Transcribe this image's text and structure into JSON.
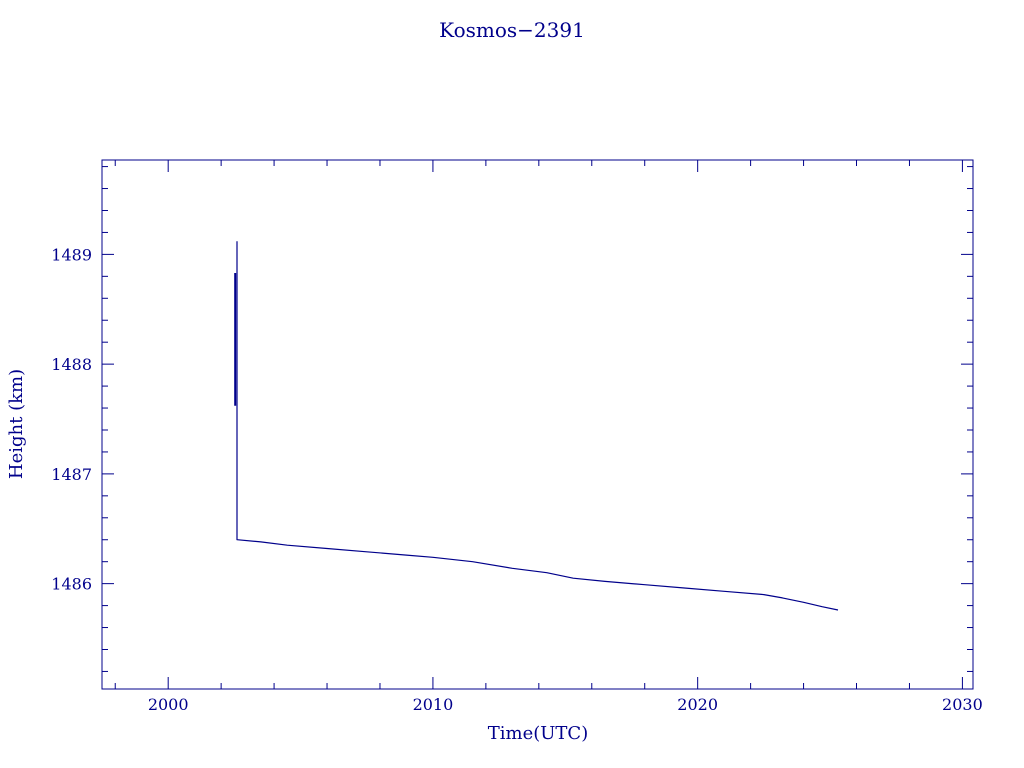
{
  "chart_data": {
    "type": "line",
    "title": "Kosmos−2391",
    "xlabel": "Time(UTC)",
    "ylabel": "Height (km)",
    "xlim": [
      1997.5,
      2030.4
    ],
    "ylim": [
      1485.04,
      1489.86
    ],
    "x_ticks": [
      2000,
      2010,
      2020,
      2030
    ],
    "x_minor_step": 2,
    "y_ticks": [
      1486,
      1487,
      1488,
      1489
    ],
    "y_minor_step": 0.2,
    "grid": false,
    "color": "#00008b",
    "series": [
      {
        "values": [
          [
            2002.6,
            1489.12
          ],
          [
            2002.6,
            1486.4
          ],
          [
            2003.5,
            1486.38
          ],
          [
            2004.5,
            1486.35
          ],
          [
            2006.0,
            1486.32
          ],
          [
            2007.5,
            1486.29
          ],
          [
            2009.0,
            1486.26
          ],
          [
            2010.0,
            1486.24
          ],
          [
            2011.5,
            1486.2
          ],
          [
            2013.0,
            1486.14
          ],
          [
            2014.3,
            1486.1
          ],
          [
            2015.3,
            1486.05
          ],
          [
            2016.5,
            1486.02
          ],
          [
            2018.0,
            1485.99
          ],
          [
            2019.5,
            1485.96
          ],
          [
            2021.0,
            1485.93
          ],
          [
            2022.5,
            1485.9
          ],
          [
            2023.2,
            1485.87
          ],
          [
            2024.0,
            1485.83
          ],
          [
            2024.7,
            1485.79
          ],
          [
            2025.3,
            1485.76
          ]
        ]
      },
      {
        "values": [
          [
            2002.53,
            1488.83
          ],
          [
            2002.53,
            1487.62
          ]
        ]
      }
    ]
  }
}
